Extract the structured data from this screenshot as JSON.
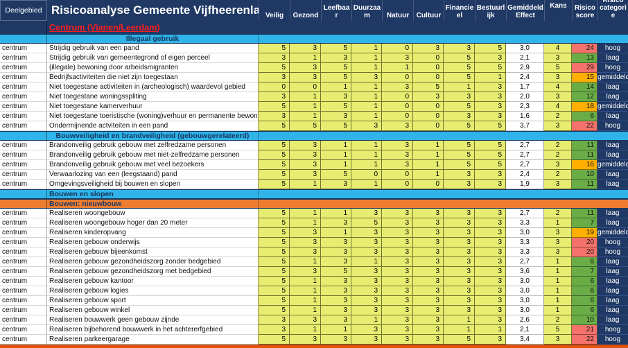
{
  "header": {
    "deelgebied_label": "Deelgebied",
    "title": "Risicoanalyse Gemeente Vijfheerenlanden",
    "columns": [
      "Veilig",
      "Gezond",
      "Leefbaar",
      "Duurzaam",
      "Natuur",
      "Cultuur",
      "Financieel",
      "Bestuurlijk",
      "Gemiddeld Effect",
      "Kans",
      "Risico score",
      "Risico categorie"
    ]
  },
  "region_header": "Centrum (Vianen/Leerdam)",
  "sections": [
    {
      "label": "Illegaal gebruik",
      "style": "cyan",
      "align": "center",
      "rows": [
        {
          "deelgebied": "centrum",
          "activity": "Strijdig gebruik van een pand",
          "scores": [
            5,
            3,
            5,
            1,
            0,
            3,
            3,
            5
          ],
          "effect": "3,0",
          "kans": 4,
          "risico": 24,
          "risico_color": "red",
          "categorie": "hoog"
        },
        {
          "deelgebied": "centrum",
          "activity": "Strijdig gebruik van gemeentegrond of eigen perceel",
          "scores": [
            3,
            1,
            3,
            1,
            3,
            0,
            5,
            3
          ],
          "effect": "2,1",
          "kans": 3,
          "risico": 13,
          "risico_color": "green",
          "categorie": "laag"
        },
        {
          "deelgebied": "centrum",
          "activity": "(illegale) bewoning door arbeidsmigranten",
          "scores": [
            5,
            3,
            5,
            1,
            1,
            0,
            5,
            5
          ],
          "effect": "2,9",
          "kans": 5,
          "risico": 29,
          "risico_color": "red",
          "categorie": "hoog"
        },
        {
          "deelgebied": "centrum",
          "activity": "Bedrijfsactiviteiten die niet zijn toegestaan",
          "scores": [
            3,
            3,
            5,
            3,
            0,
            0,
            5,
            1
          ],
          "effect": "2,4",
          "kans": 3,
          "risico": 15,
          "risico_color": "orange",
          "categorie": "gemiddeld"
        },
        {
          "deelgebied": "centrum",
          "activity": "Niet toegestane activiteiten in (archeologisch) waardevol gebied",
          "scores": [
            0,
            0,
            1,
            1,
            3,
            5,
            1,
            3
          ],
          "effect": "1,7",
          "kans": 4,
          "risico": 14,
          "risico_color": "green",
          "categorie": "laag"
        },
        {
          "deelgebied": "centrum",
          "activity": "Niet toegestane woningsspliting",
          "scores": [
            3,
            1,
            3,
            1,
            0,
            3,
            3,
            3
          ],
          "effect": "2,0",
          "kans": 3,
          "risico": 12,
          "risico_color": "green",
          "categorie": "laag"
        },
        {
          "deelgebied": "centrum",
          "activity": "Niet toegestane kamerverhuur",
          "scores": [
            5,
            1,
            5,
            1,
            0,
            0,
            5,
            3
          ],
          "effect": "2,3",
          "kans": 4,
          "risico": 18,
          "risico_color": "orange",
          "categorie": "gemiddeld"
        },
        {
          "deelgebied": "centrum",
          "activity": "Niet toegestane toeristische (woning)verhuur en permanente bewoning recrea",
          "scores": [
            3,
            1,
            3,
            1,
            0,
            0,
            3,
            3
          ],
          "effect": "1,6",
          "kans": 2,
          "risico": 6,
          "risico_color": "green",
          "categorie": "laag"
        },
        {
          "deelgebied": "centrum",
          "activity": "Ondermijnende actviteiten in een pand",
          "scores": [
            5,
            5,
            5,
            3,
            3,
            0,
            5,
            5
          ],
          "effect": "3,7",
          "kans": 3,
          "risico": 22,
          "risico_color": "red",
          "categorie": "hoog"
        }
      ]
    },
    {
      "label": "Bouwveiligheid en brandveiligheid (gebouwgerelateerd)",
      "style": "cyan",
      "align": "center",
      "rows": [
        {
          "deelgebied": "centrum",
          "activity": "Brandonveilig gebruik gebouw met zelfredzame personen",
          "scores": [
            5,
            3,
            1,
            1,
            3,
            1,
            5,
            5
          ],
          "effect": "2,7",
          "kans": 2,
          "risico": 11,
          "risico_color": "green",
          "categorie": "laag"
        },
        {
          "deelgebied": "centrum",
          "activity": "Brandonveilig gebruik gebouw met niet-zelfredzame personen",
          "scores": [
            5,
            3,
            1,
            1,
            3,
            1,
            5,
            5
          ],
          "effect": "2,7",
          "kans": 2,
          "risico": 11,
          "risico_color": "green",
          "categorie": "laag"
        },
        {
          "deelgebied": "centrum",
          "activity": "Brandonveilig gebruik gebouw met veel bezoekers",
          "scores": [
            5,
            3,
            1,
            1,
            3,
            1,
            5,
            5
          ],
          "effect": "2,7",
          "kans": 3,
          "risico": 16,
          "risico_color": "orange",
          "categorie": "gemiddeld"
        },
        {
          "deelgebied": "centrum",
          "activity": "Verwaarlozing van een (leegstaand) pand",
          "scores": [
            5,
            3,
            5,
            0,
            0,
            1,
            3,
            3
          ],
          "effect": "2,4",
          "kans": 2,
          "risico": 10,
          "risico_color": "green",
          "categorie": "laag"
        },
        {
          "deelgebied": "centrum",
          "activity": "Omgevingsveiligheid bij bouwen en slopen",
          "scores": [
            5,
            1,
            3,
            1,
            0,
            0,
            3,
            3
          ],
          "effect": "1,9",
          "kans": 3,
          "risico": 11,
          "risico_color": "green",
          "categorie": "laag"
        }
      ]
    },
    {
      "label": "Bouwen en slopen",
      "style": "cyan",
      "align": "left",
      "rows": []
    },
    {
      "label": "Bouwen: nieuwbouw",
      "style": "orange",
      "align": "left",
      "rows": [
        {
          "deelgebied": "centrum",
          "activity": "Realiseren woongebouw",
          "scores": [
            5,
            1,
            1,
            3,
            3,
            3,
            3,
            3
          ],
          "effect": "2,7",
          "kans": 2,
          "risico": 11,
          "risico_color": "green",
          "categorie": "laag"
        },
        {
          "deelgebied": "centrum",
          "activity": "Realiseren woongebouw hoger dan 20 meter",
          "scores": [
            5,
            1,
            3,
            5,
            3,
            3,
            3,
            3
          ],
          "effect": "3,3",
          "kans": 1,
          "risico": 7,
          "risico_color": "green",
          "categorie": "laag"
        },
        {
          "deelgebied": "centrum",
          "activity": "Realiseren kinderopvang",
          "scores": [
            5,
            3,
            1,
            3,
            3,
            3,
            3,
            3
          ],
          "effect": "3,0",
          "kans": 3,
          "risico": 19,
          "risico_color": "orange",
          "categorie": "gemiddeld"
        },
        {
          "deelgebied": "centrum",
          "activity": "Realiseren gebouw onderwijs",
          "scores": [
            5,
            3,
            3,
            3,
            3,
            3,
            3,
            3
          ],
          "effect": "3,3",
          "kans": 3,
          "risico": 20,
          "risico_color": "red",
          "categorie": "hoog"
        },
        {
          "deelgebied": "centrum",
          "activity": "Realiseren gebouw bijeenkomst",
          "scores": [
            5,
            3,
            3,
            3,
            3,
            3,
            3,
            3
          ],
          "effect": "3,3",
          "kans": 3,
          "risico": 20,
          "risico_color": "red",
          "categorie": "hoog"
        },
        {
          "deelgebied": "centrum",
          "activity": "Realiseren gebouw gezondheidszorg zonder bedgebied",
          "scores": [
            5,
            1,
            3,
            1,
            3,
            3,
            3,
            3
          ],
          "effect": "2,7",
          "kans": 1,
          "risico": 6,
          "risico_color": "green",
          "categorie": "laag"
        },
        {
          "deelgebied": "centrum",
          "activity": "Realiseren gebouw gezondheidszorg met bedgebied",
          "scores": [
            5,
            3,
            5,
            3,
            3,
            3,
            3,
            3
          ],
          "effect": "3,6",
          "kans": 1,
          "risico": 7,
          "risico_color": "green",
          "categorie": "laag"
        },
        {
          "deelgebied": "centrum",
          "activity": "Realiseren gebouw kantoor",
          "scores": [
            5,
            1,
            3,
            3,
            3,
            3,
            3,
            3
          ],
          "effect": "3,0",
          "kans": 1,
          "risico": 6,
          "risico_color": "green",
          "categorie": "laag"
        },
        {
          "deelgebied": "centrum",
          "activity": "Realiseren gebouw logies",
          "scores": [
            5,
            1,
            3,
            3,
            3,
            3,
            3,
            3
          ],
          "effect": "3,0",
          "kans": 1,
          "risico": 6,
          "risico_color": "green",
          "categorie": "laag"
        },
        {
          "deelgebied": "centrum",
          "activity": "Realiseren gebouw sport",
          "scores": [
            5,
            1,
            3,
            3,
            3,
            3,
            3,
            3
          ],
          "effect": "3,0",
          "kans": 1,
          "risico": 6,
          "risico_color": "green",
          "categorie": "laag"
        },
        {
          "deelgebied": "centrum",
          "activity": "Realiseren gebouw winkel",
          "scores": [
            5,
            1,
            3,
            3,
            3,
            3,
            3,
            3
          ],
          "effect": "3,0",
          "kans": 1,
          "risico": 6,
          "risico_color": "green",
          "categorie": "laag"
        },
        {
          "deelgebied": "centrum",
          "activity": "Realiseren bouwwerk geen gebouw zijnde",
          "scores": [
            3,
            3,
            3,
            1,
            3,
            3,
            1,
            3
          ],
          "effect": "2,6",
          "kans": 2,
          "risico": 10,
          "risico_color": "green",
          "categorie": "laag"
        },
        {
          "deelgebied": "centrum",
          "activity": "Realiseren bijbehorend bouwwerk in het achtererfgebied",
          "scores": [
            3,
            1,
            1,
            3,
            3,
            3,
            1,
            1
          ],
          "effect": "2,1",
          "kans": 5,
          "risico": 21,
          "risico_color": "red",
          "categorie": "hoog"
        },
        {
          "deelgebied": "centrum",
          "activity": "Realiseren parkeergarage",
          "scores": [
            5,
            3,
            3,
            3,
            3,
            3,
            5,
            3
          ],
          "effect": "3,4",
          "kans": 3,
          "risico": 22,
          "risico_color": "red",
          "categorie": "hoog"
        }
      ]
    }
  ],
  "colors": {
    "header_navy": "#1F3864",
    "cyan_section": "#2FB3E8",
    "orange_section": "#ED7D31",
    "cell_yellow": "#E7ED71",
    "risk_red": "#F4726B",
    "risk_green": "#6AAD47",
    "risk_orange": "#FFAF00",
    "region_title_red": "#FF1F1F",
    "bottom_strip": "#E2540E"
  }
}
